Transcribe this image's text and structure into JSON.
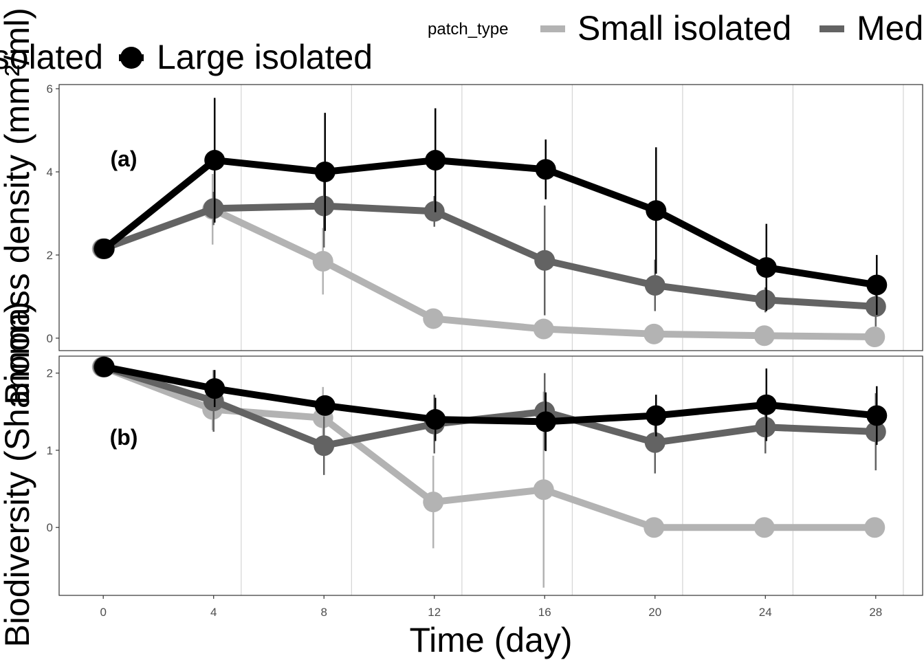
{
  "legend": {
    "title": "patch_type",
    "placement": "top",
    "entries": [
      {
        "label": "Small isolated",
        "color": "#b3b3b3"
      },
      {
        "label": "Medium isolated",
        "color": "#636363"
      },
      {
        "label": "Large isolated",
        "color": "#000000"
      }
    ]
  },
  "chart_data": [
    {
      "type": "line",
      "panel_label": "(a)",
      "ylabel": "Biomass density (mm²/ml)",
      "xlabel": "",
      "ylim": [
        -0.3,
        6.1
      ],
      "yticks": [
        0,
        2,
        4,
        6
      ],
      "grid": "vertical minor",
      "series": [
        {
          "name": "Small isolated",
          "color": "#b3b3b3",
          "x": [
            0,
            4,
            8,
            12,
            16,
            20,
            24,
            28
          ],
          "y": [
            2.15,
            3.1,
            1.85,
            0.47,
            0.22,
            0.1,
            0.06,
            0.03
          ],
          "err": [
            0.08,
            0.85,
            0.8,
            0.08,
            0.2,
            0.08,
            0.04,
            0.03
          ]
        },
        {
          "name": "Medium isolated",
          "color": "#636363",
          "x": [
            0,
            4,
            8,
            12,
            16,
            20,
            24,
            28
          ],
          "y": [
            2.15,
            3.12,
            3.18,
            3.05,
            1.87,
            1.27,
            0.92,
            0.76
          ],
          "err": [
            0.08,
            0.4,
            1.0,
            0.37,
            1.32,
            0.62,
            0.3,
            0.48
          ]
        },
        {
          "name": "Large isolated",
          "color": "#000000",
          "x": [
            0,
            4,
            8,
            12,
            16,
            20,
            24,
            28
          ],
          "y": [
            2.15,
            4.28,
            4.0,
            4.28,
            4.06,
            3.07,
            1.7,
            1.28
          ],
          "err": [
            0.08,
            1.5,
            1.42,
            1.25,
            0.72,
            1.52,
            1.05,
            0.72
          ]
        }
      ]
    },
    {
      "type": "line",
      "panel_label": "(b)",
      "ylabel": "Biodiversity (Shannon)",
      "xlabel": "Time (day)",
      "ylim": [
        -0.88,
        2.22
      ],
      "yticks": [
        0,
        1,
        2
      ],
      "xlim": [
        -1.6,
        29.7
      ],
      "xticks": [
        0,
        4,
        8,
        12,
        16,
        20,
        24,
        28
      ],
      "grid": "vertical minor",
      "series": [
        {
          "name": "Small isolated",
          "color": "#b3b3b3",
          "x": [
            0,
            4,
            8,
            12,
            16,
            20,
            24,
            28
          ],
          "y": [
            2.08,
            1.53,
            1.42,
            0.33,
            0.49,
            0.0,
            0.0,
            0.0
          ],
          "err": [
            0.03,
            0.27,
            0.4,
            0.6,
            1.27,
            0.0,
            0.0,
            0.0
          ]
        },
        {
          "name": "Medium isolated",
          "color": "#636363",
          "x": [
            0,
            4,
            8,
            12,
            16,
            20,
            24,
            28
          ],
          "y": [
            2.08,
            1.64,
            1.06,
            1.34,
            1.5,
            1.1,
            1.3,
            1.24
          ],
          "err": [
            0.03,
            0.4,
            0.38,
            0.38,
            0.5,
            0.4,
            0.34,
            0.5
          ]
        },
        {
          "name": "Large isolated",
          "color": "#000000",
          "x": [
            0,
            4,
            8,
            12,
            16,
            20,
            24,
            28
          ],
          "y": [
            2.08,
            1.8,
            1.58,
            1.4,
            1.37,
            1.45,
            1.59,
            1.45
          ],
          "err": [
            0.03,
            0.24,
            0.12,
            0.28,
            0.38,
            0.27,
            0.47,
            0.38
          ]
        }
      ]
    }
  ]
}
